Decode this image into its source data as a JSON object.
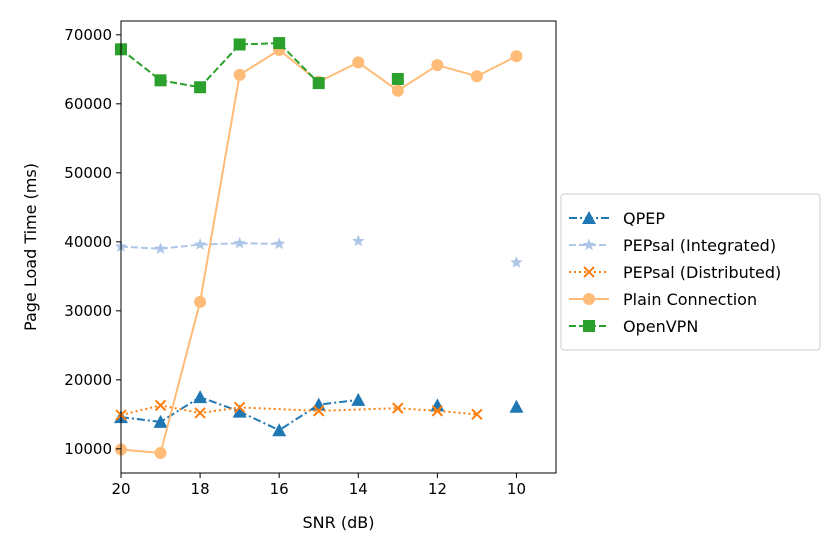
{
  "chart_data": {
    "type": "line",
    "title": "",
    "xlabel": "SNR (dB)",
    "ylabel": "Page Load Time (ms)",
    "xlim": [
      20,
      9
    ],
    "ylim": [
      6500,
      72000
    ],
    "x_ticks": [
      20,
      18,
      16,
      14,
      12,
      10
    ],
    "x_tick_labels": [
      "20",
      "18",
      "16",
      "14",
      "12",
      "10"
    ],
    "y_ticks": [
      10000,
      20000,
      30000,
      40000,
      50000,
      60000,
      70000
    ],
    "y_tick_labels": [
      "10000",
      "20000",
      "30000",
      "40000",
      "50000",
      "60000",
      "70000"
    ],
    "grid": false,
    "legend_position": "right",
    "series": [
      {
        "name": "QPEP",
        "color": "#1f77b4",
        "marker": "triangle",
        "linestyle": "dashdot",
        "points": [
          [
            20,
            14600
          ],
          [
            19,
            13900
          ],
          [
            18,
            17500
          ],
          [
            17,
            15400
          ],
          [
            16,
            12700
          ],
          [
            15,
            16400
          ],
          [
            14,
            17100
          ],
          [
            12,
            16300
          ],
          [
            10,
            16100
          ]
        ],
        "connected_until": 14
      },
      {
        "name": "PEPsal (Integrated)",
        "color": "#aec7e8",
        "marker": "star",
        "linestyle": "dashed",
        "points": [
          [
            20,
            39300
          ],
          [
            19,
            39000
          ],
          [
            18,
            39600
          ],
          [
            17,
            39800
          ],
          [
            16,
            39700
          ],
          [
            14,
            40100
          ],
          [
            10,
            37000
          ]
        ],
        "connected_until": 16
      },
      {
        "name": "PEPsal (Distributed)",
        "color": "#ff7f0e",
        "marker": "x",
        "linestyle": "dotted",
        "points": [
          [
            20,
            14900
          ],
          [
            19,
            16300
          ],
          [
            18,
            15200
          ],
          [
            17,
            16000
          ],
          [
            15,
            15500
          ],
          [
            13,
            15900
          ],
          [
            12,
            15500
          ],
          [
            11,
            15000
          ]
        ],
        "connected_until": 11
      },
      {
        "name": "Plain Connection",
        "color": "#ffbb78",
        "marker": "circle",
        "linestyle": "solid",
        "points": [
          [
            20,
            9900
          ],
          [
            19,
            9400
          ],
          [
            18,
            31300
          ],
          [
            17,
            64200
          ],
          [
            16,
            67800
          ],
          [
            15,
            63200
          ],
          [
            14,
            66000
          ],
          [
            13,
            61900
          ],
          [
            12,
            65600
          ],
          [
            11,
            64000
          ],
          [
            10,
            66900
          ]
        ],
        "connected_until": 10
      },
      {
        "name": "OpenVPN",
        "color": "#2ca02c",
        "marker": "square",
        "linestyle": "dashed",
        "points": [
          [
            20,
            67900
          ],
          [
            19,
            63400
          ],
          [
            18,
            62400
          ],
          [
            17,
            68600
          ],
          [
            16,
            68800
          ],
          [
            15,
            63000
          ],
          [
            13,
            63600
          ]
        ],
        "connected_until": 15
      }
    ]
  }
}
